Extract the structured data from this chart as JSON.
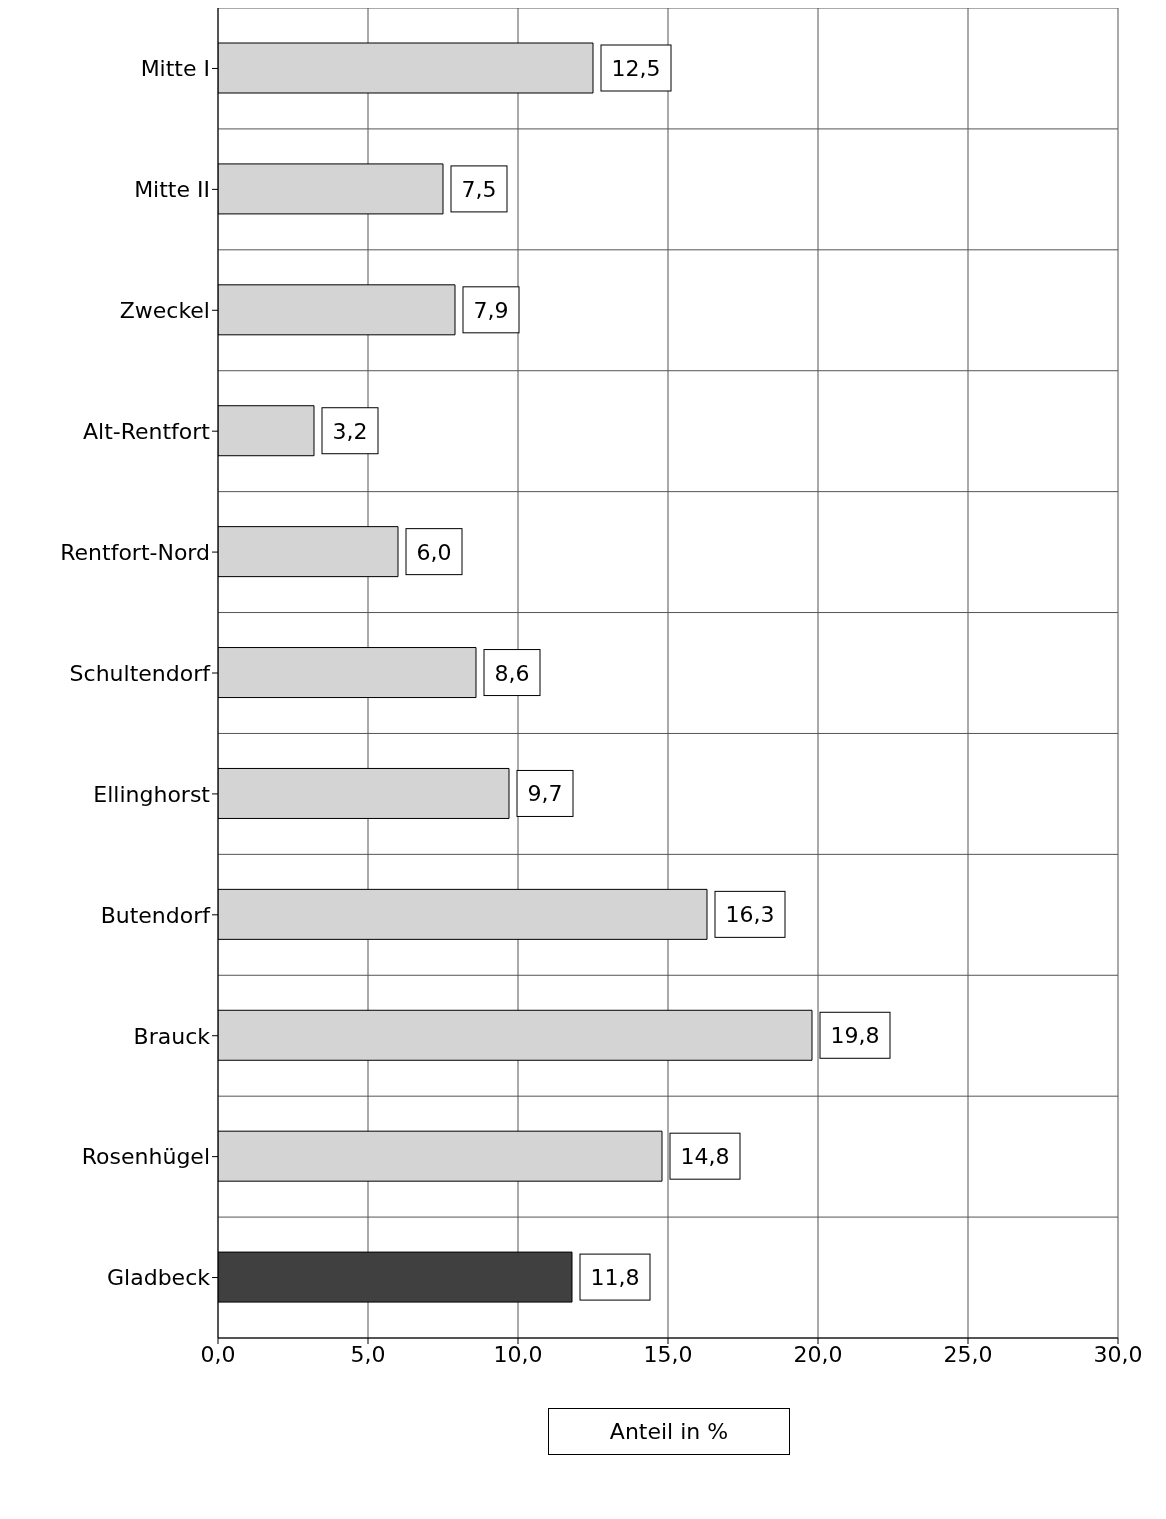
{
  "chart_data": {
    "type": "bar",
    "orientation": "horizontal",
    "xlabel": "Anteil in %",
    "categories": [
      "Mitte I",
      "Mitte II",
      "Zweckel",
      "Alt-Rentfort",
      "Rentfort-Nord",
      "Schultendorf",
      "Ellinghorst",
      "Butendorf",
      "Brauck",
      "Rosenhügel",
      "Gladbeck"
    ],
    "values": [
      12.5,
      7.5,
      7.9,
      3.2,
      6.0,
      8.6,
      9.7,
      16.3,
      19.8,
      14.8,
      11.8
    ],
    "value_labels": [
      "12,5",
      "7,5",
      "7,9",
      "3,2",
      "6,0",
      "8,6",
      "9,7",
      "16,3",
      "19,8",
      "14,8",
      "11,8"
    ],
    "colors": [
      "#d4d4d4",
      "#d4d4d4",
      "#d4d4d4",
      "#d4d4d4",
      "#d4d4d4",
      "#d4d4d4",
      "#d4d4d4",
      "#d4d4d4",
      "#d4d4d4",
      "#d4d4d4",
      "#404040"
    ],
    "xlim": [
      0,
      30
    ],
    "xticks": [
      {
        "value": 0,
        "label": "0,0"
      },
      {
        "value": 5,
        "label": "5,0"
      },
      {
        "value": 10,
        "label": "10,0"
      },
      {
        "value": 15,
        "label": "15,0"
      },
      {
        "value": 20,
        "label": "20,0"
      },
      {
        "value": 25,
        "label": "25,0"
      },
      {
        "value": 30,
        "label": "30,0"
      }
    ],
    "grid": true
  }
}
